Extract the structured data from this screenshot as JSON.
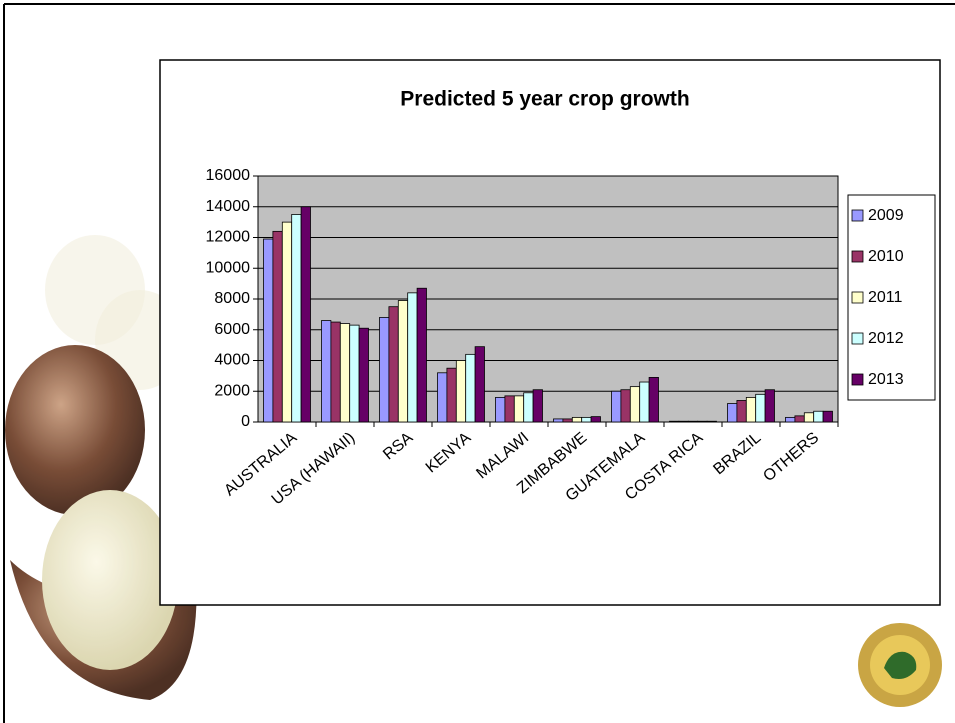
{
  "chart_data": {
    "type": "bar",
    "title": "Predicted 5 year crop growth",
    "categories": [
      "AUSTRALIA",
      "USA (HAWAII)",
      "RSA",
      "KENYA",
      "MALAWI",
      "ZIMBABWE",
      "GUATEMALA",
      "COSTA RICA",
      "BRAZIL",
      "OTHERS"
    ],
    "series": [
      {
        "name": "2009",
        "color": "#9999ff",
        "values": [
          11900,
          6600,
          6800,
          3200,
          1600,
          200,
          2000,
          50,
          1200,
          300
        ]
      },
      {
        "name": "2010",
        "color": "#993366",
        "values": [
          12400,
          6500,
          7500,
          3500,
          1700,
          200,
          2100,
          50,
          1400,
          400
        ]
      },
      {
        "name": "2011",
        "color": "#ffffcc",
        "values": [
          13000,
          6400,
          7900,
          4000,
          1700,
          300,
          2300,
          50,
          1600,
          600
        ]
      },
      {
        "name": "2012",
        "color": "#ccffff",
        "values": [
          13500,
          6300,
          8400,
          4400,
          1900,
          300,
          2600,
          50,
          1800,
          700
        ]
      },
      {
        "name": "2013",
        "color": "#660066",
        "values": [
          14000,
          6100,
          8700,
          4900,
          2100,
          350,
          2900,
          50,
          2100,
          700
        ]
      }
    ],
    "ylim": [
      0,
      16000
    ],
    "yticks": [
      0,
      2000,
      4000,
      6000,
      8000,
      10000,
      12000,
      14000,
      16000
    ],
    "grid": true,
    "legend": "right"
  }
}
